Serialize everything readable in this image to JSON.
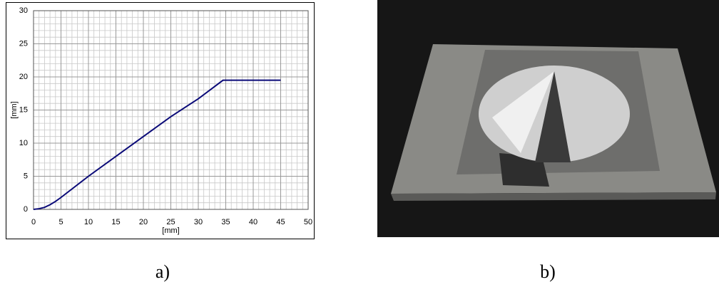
{
  "chart_data": {
    "type": "line",
    "x_label": "[mm]",
    "y_label": "[mm]",
    "xlim": [
      0,
      50
    ],
    "ylim": [
      0,
      30
    ],
    "xticks": [
      0,
      5,
      10,
      15,
      20,
      25,
      30,
      35,
      40,
      45,
      50
    ],
    "yticks": [
      0,
      5,
      10,
      15,
      20,
      25,
      30
    ],
    "grid": true,
    "minor_grid": true,
    "x": [
      0,
      1,
      2,
      3,
      4,
      5,
      10,
      15,
      20,
      25,
      30,
      34.5,
      45
    ],
    "series": [
      {
        "color": "#0a0a78",
        "values": [
          0,
          0.1,
          0.3,
          0.7,
          1.2,
          1.8,
          5,
          8,
          11,
          14,
          16.7,
          19.5,
          19.5
        ]
      }
    ]
  },
  "captions": [
    "a)",
    "b)"
  ]
}
